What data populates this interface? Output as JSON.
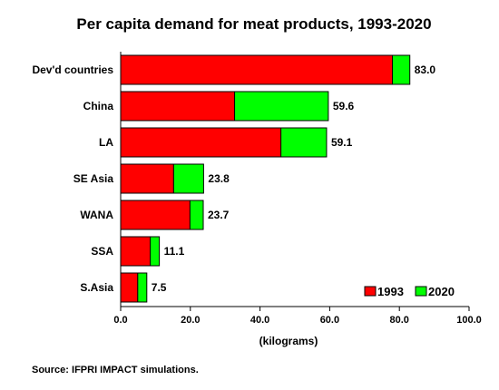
{
  "chart_data": {
    "type": "bar",
    "orientation": "horizontal",
    "stacked": true,
    "title": "Per capita demand for meat products, 1993-2020",
    "xlabel": "(kilograms)",
    "ylabel": "",
    "xlim": [
      0,
      100
    ],
    "xticks": [
      "0.0",
      "20.0",
      "40.0",
      "60.0",
      "80.0",
      "100.0"
    ],
    "grid": false,
    "legend_position": "bottom-right",
    "categories": [
      "Dev'd countries",
      "China",
      "LA",
      "SE Asia",
      "WANA",
      "SSA",
      "S.Asia"
    ],
    "series": [
      {
        "name": "1993",
        "color": "#ff0000",
        "values": [
          78.0,
          32.7,
          46.0,
          15.2,
          19.9,
          8.5,
          4.9
        ]
      },
      {
        "name": "2020",
        "color": "#00ff00",
        "values": [
          5.0,
          26.9,
          13.1,
          8.6,
          3.8,
          2.6,
          2.6
        ]
      }
    ],
    "totals": [
      "83.0",
      "59.6",
      "59.1",
      "23.8",
      "23.7",
      "11.1",
      "7.5"
    ],
    "source": "Source:  IFPRI IMPACT simulations."
  }
}
